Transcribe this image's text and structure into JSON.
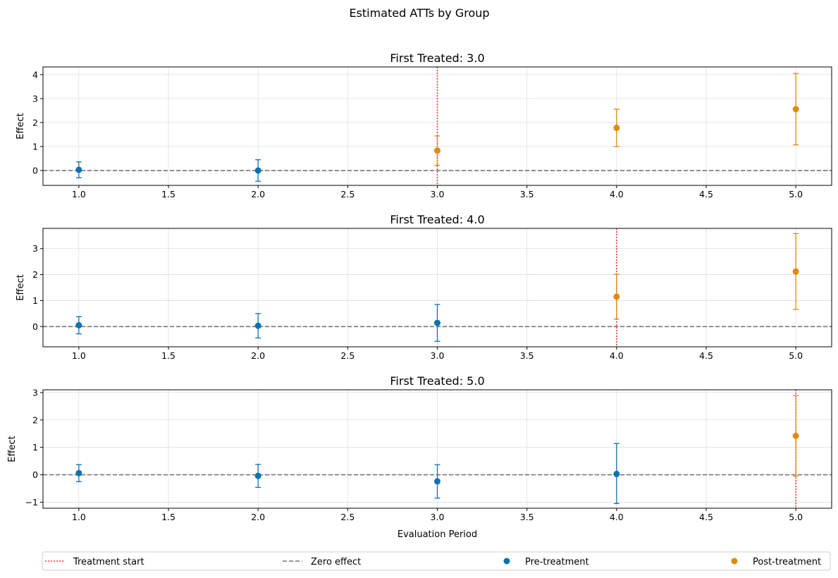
{
  "suptitle": "Estimated ATTs by Group",
  "colors": {
    "pre": "#0a72b3",
    "post": "#e08a0b",
    "treatment_line": "#ee3333",
    "zero_line": "#777777",
    "grid": "#dddddd"
  },
  "legend": {
    "placement": "bottom",
    "items": [
      {
        "label": "Treatment start",
        "kind": "dotted-line",
        "color_key": "treatment_line"
      },
      {
        "label": "Zero effect",
        "kind": "dashed-line",
        "color_key": "zero_line"
      },
      {
        "label": "Pre-treatment",
        "kind": "marker",
        "color_key": "pre"
      },
      {
        "label": "Post-treatment",
        "kind": "marker",
        "color_key": "post"
      }
    ]
  },
  "chart_data": [
    {
      "type": "scatter",
      "title": "First Treated: 3.0",
      "xlabel": "",
      "ylabel": "Effect",
      "xlim": [
        0.8,
        5.2
      ],
      "ylim": [
        -0.62,
        4.32
      ],
      "xticks": [
        1.0,
        1.5,
        2.0,
        2.5,
        3.0,
        3.5,
        4.0,
        4.5,
        5.0
      ],
      "xtick_labels": [
        "1.0",
        "1.5",
        "2.0",
        "2.5",
        "3.0",
        "3.5",
        "4.0",
        "4.5",
        "5.0"
      ],
      "yticks": [
        0,
        1,
        2,
        3,
        4
      ],
      "ytick_labels": [
        "0",
        "1",
        "2",
        "3",
        "4"
      ],
      "treatment_x": 3.0,
      "grid": true,
      "points": [
        {
          "x": 1.0,
          "y": 0.03,
          "lo": -0.3,
          "hi": 0.36,
          "phase": "pre"
        },
        {
          "x": 2.0,
          "y": 0.0,
          "lo": -0.45,
          "hi": 0.45,
          "phase": "pre"
        },
        {
          "x": 3.0,
          "y": 0.83,
          "lo": 0.22,
          "hi": 1.44,
          "phase": "post"
        },
        {
          "x": 4.0,
          "y": 1.78,
          "lo": 1.0,
          "hi": 2.56,
          "phase": "post"
        },
        {
          "x": 5.0,
          "y": 2.56,
          "lo": 1.07,
          "hi": 4.05,
          "phase": "post"
        }
      ]
    },
    {
      "type": "scatter",
      "title": "First Treated: 4.0",
      "xlabel": "",
      "ylabel": "Effect",
      "xlim": [
        0.8,
        5.2
      ],
      "ylim": [
        -0.78,
        3.78
      ],
      "xticks": [
        1.0,
        1.5,
        2.0,
        2.5,
        3.0,
        3.5,
        4.0,
        4.5,
        5.0
      ],
      "xtick_labels": [
        "1.0",
        "1.5",
        "2.0",
        "2.5",
        "3.0",
        "3.5",
        "4.0",
        "4.5",
        "5.0"
      ],
      "yticks": [
        0,
        1,
        2,
        3
      ],
      "ytick_labels": [
        "0",
        "1",
        "2",
        "3"
      ],
      "treatment_x": 4.0,
      "grid": true,
      "points": [
        {
          "x": 1.0,
          "y": 0.05,
          "lo": -0.28,
          "hi": 0.38,
          "phase": "pre"
        },
        {
          "x": 2.0,
          "y": 0.03,
          "lo": -0.44,
          "hi": 0.5,
          "phase": "pre"
        },
        {
          "x": 3.0,
          "y": 0.14,
          "lo": -0.57,
          "hi": 0.85,
          "phase": "pre"
        },
        {
          "x": 4.0,
          "y": 1.15,
          "lo": 0.29,
          "hi": 2.01,
          "phase": "post"
        },
        {
          "x": 5.0,
          "y": 2.12,
          "lo": 0.66,
          "hi": 3.58,
          "phase": "post"
        }
      ]
    },
    {
      "type": "scatter",
      "title": "First Treated: 5.0",
      "xlabel": "Evaluation Period",
      "ylabel": "Effect",
      "xlim": [
        0.8,
        5.2
      ],
      "ylim": [
        -1.22,
        3.1
      ],
      "xticks": [
        1.0,
        1.5,
        2.0,
        2.5,
        3.0,
        3.5,
        4.0,
        4.5,
        5.0
      ],
      "xtick_labels": [
        "1.0",
        "1.5",
        "2.0",
        "2.5",
        "3.0",
        "3.5",
        "4.0",
        "4.5",
        "5.0"
      ],
      "yticks": [
        -1,
        0,
        1,
        2,
        3
      ],
      "ytick_labels": [
        "−1",
        "0",
        "1",
        "2",
        "3"
      ],
      "treatment_x": 5.0,
      "grid": true,
      "points": [
        {
          "x": 1.0,
          "y": 0.06,
          "lo": -0.25,
          "hi": 0.37,
          "phase": "pre"
        },
        {
          "x": 2.0,
          "y": -0.04,
          "lo": -0.46,
          "hi": 0.38,
          "phase": "pre"
        },
        {
          "x": 3.0,
          "y": -0.24,
          "lo": -0.85,
          "hi": 0.37,
          "phase": "pre"
        },
        {
          "x": 4.0,
          "y": 0.03,
          "lo": -1.05,
          "hi": 1.14,
          "phase": "pre"
        },
        {
          "x": 5.0,
          "y": 1.42,
          "lo": -0.05,
          "hi": 2.89,
          "phase": "post"
        }
      ]
    }
  ]
}
